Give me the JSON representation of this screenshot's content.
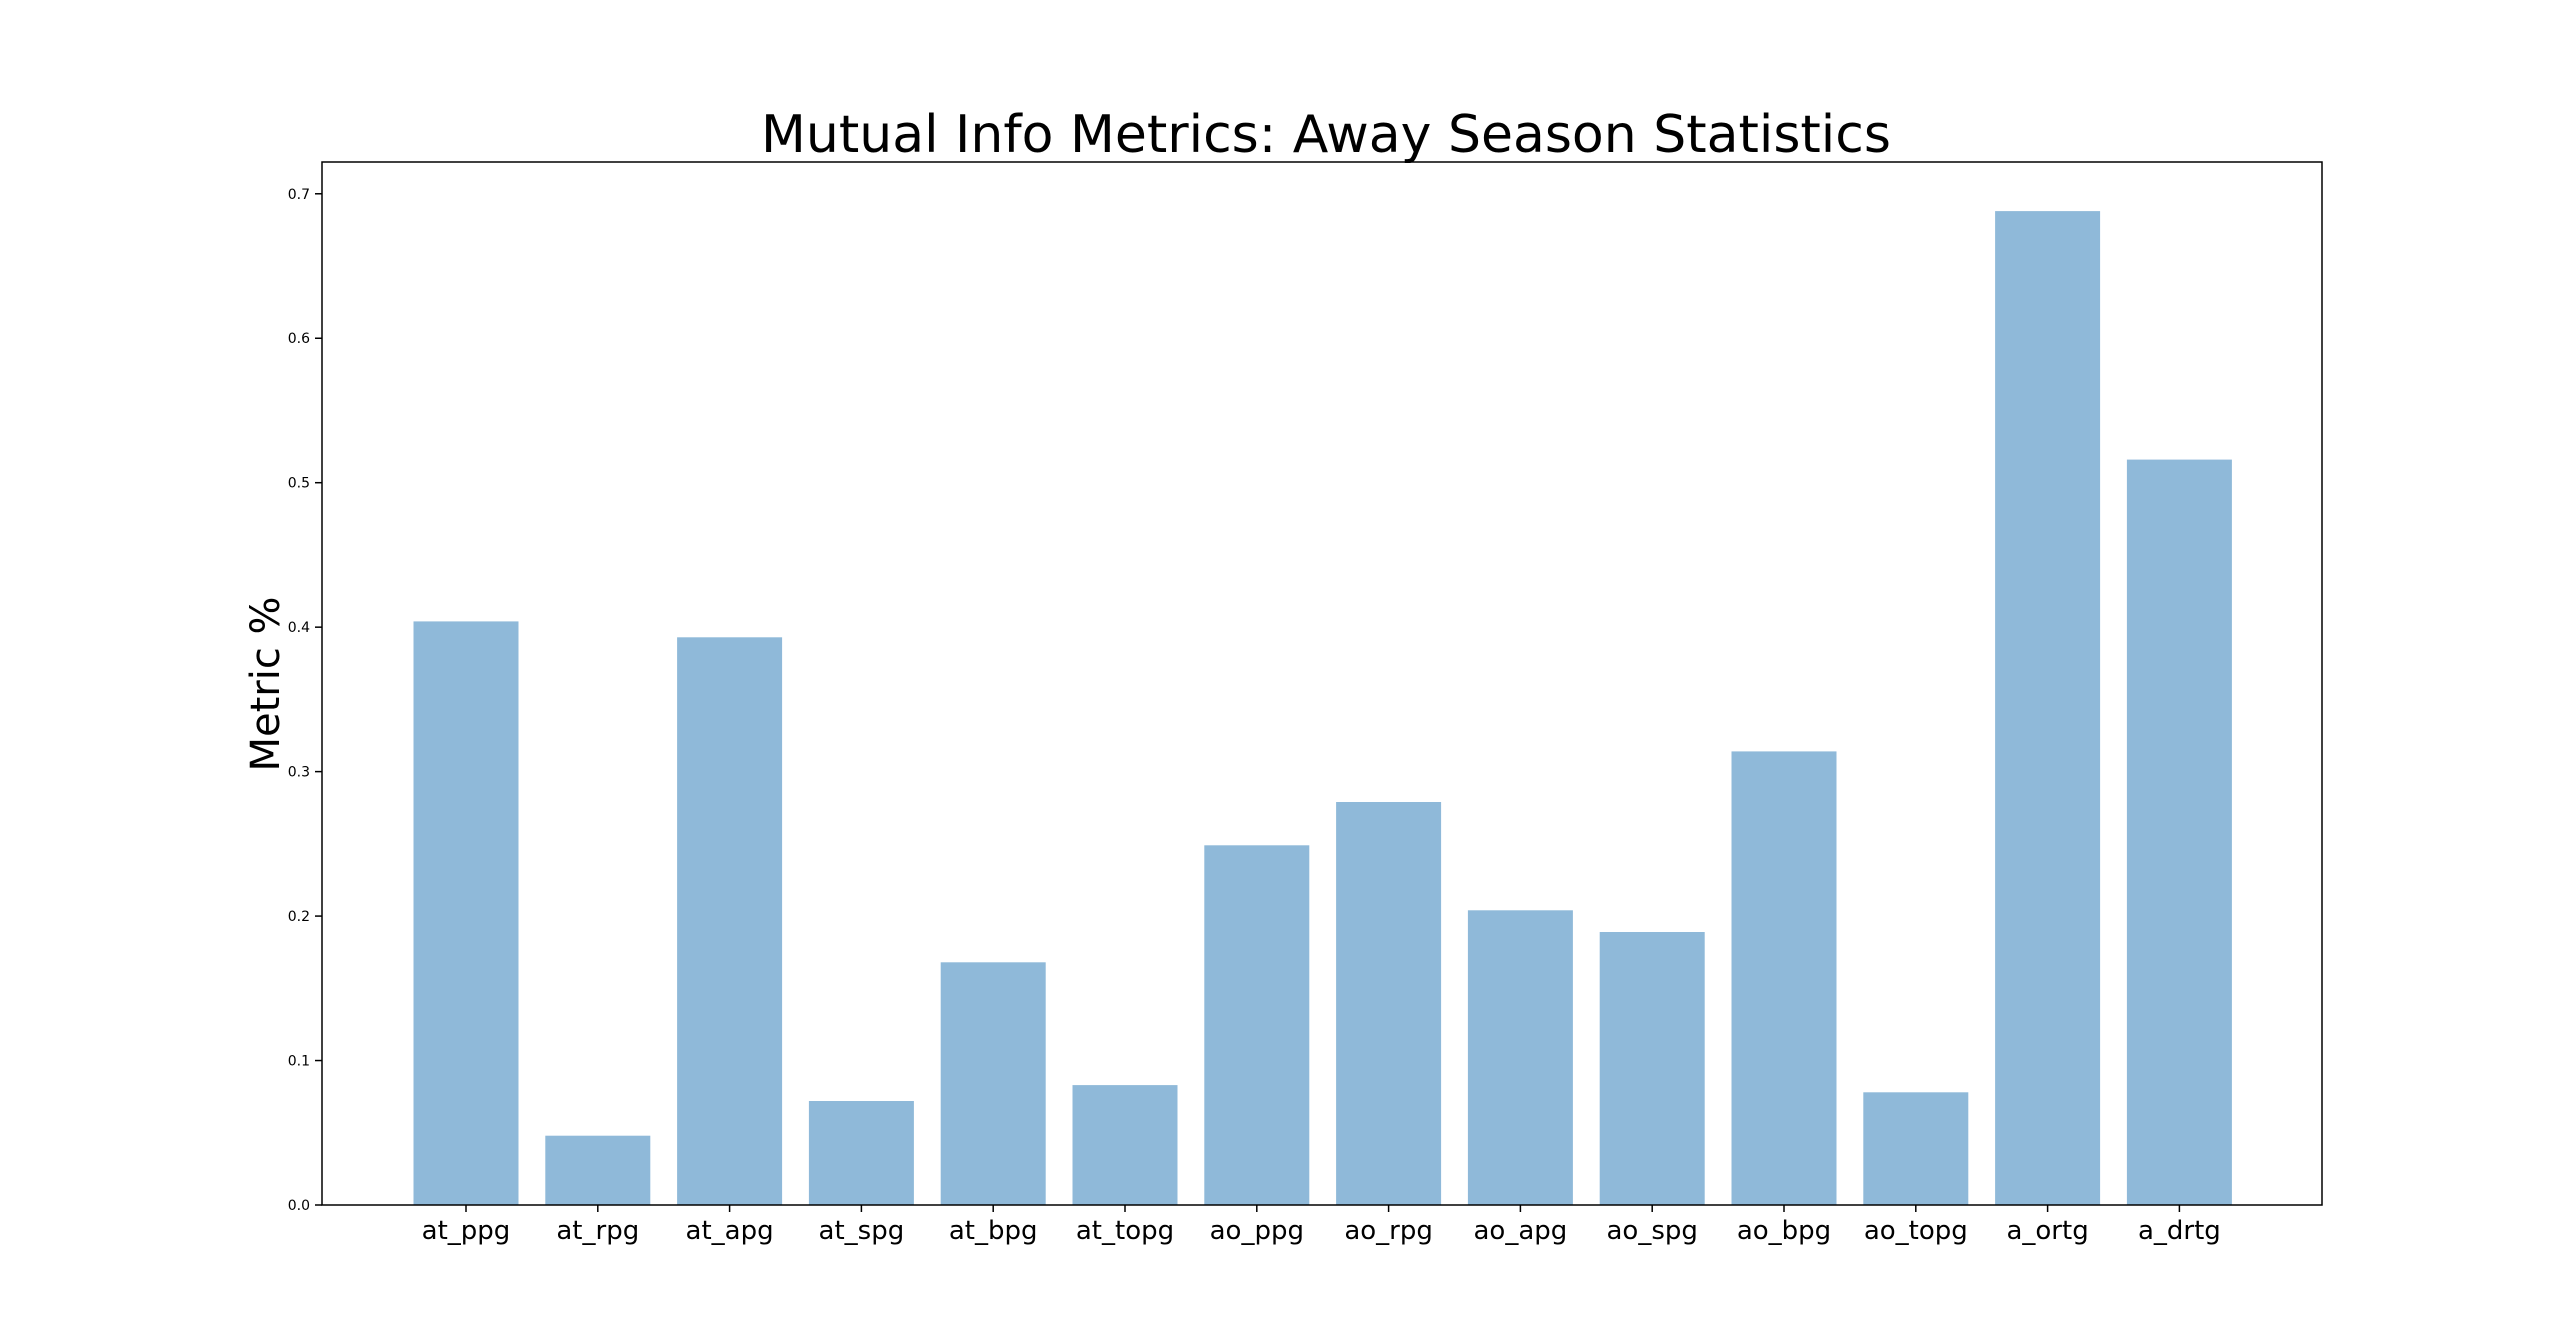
{
  "chart_data": {
    "type": "bar",
    "title": "Mutual Info Metrics: Away Season Statistics",
    "xlabel": "",
    "ylabel": "Metric %",
    "categories": [
      "at_ppg",
      "at_rpg",
      "at_apg",
      "at_spg",
      "at_bpg",
      "at_topg",
      "ao_ppg",
      "ao_rpg",
      "ao_apg",
      "ao_spg",
      "ao_bpg",
      "ao_topg",
      "a_ortg",
      "a_drtg"
    ],
    "values": [
      0.404,
      0.048,
      0.393,
      0.072,
      0.168,
      0.083,
      0.249,
      0.279,
      0.204,
      0.189,
      0.314,
      0.078,
      0.688,
      0.516
    ],
    "ylim": [
      0,
      0.722
    ],
    "yticks": [
      "0.0",
      "0.1",
      "0.2",
      "0.3",
      "0.4",
      "0.5",
      "0.6",
      "0.7"
    ],
    "bar_color": "#8fb9d9",
    "grid": false,
    "legend": false
  }
}
